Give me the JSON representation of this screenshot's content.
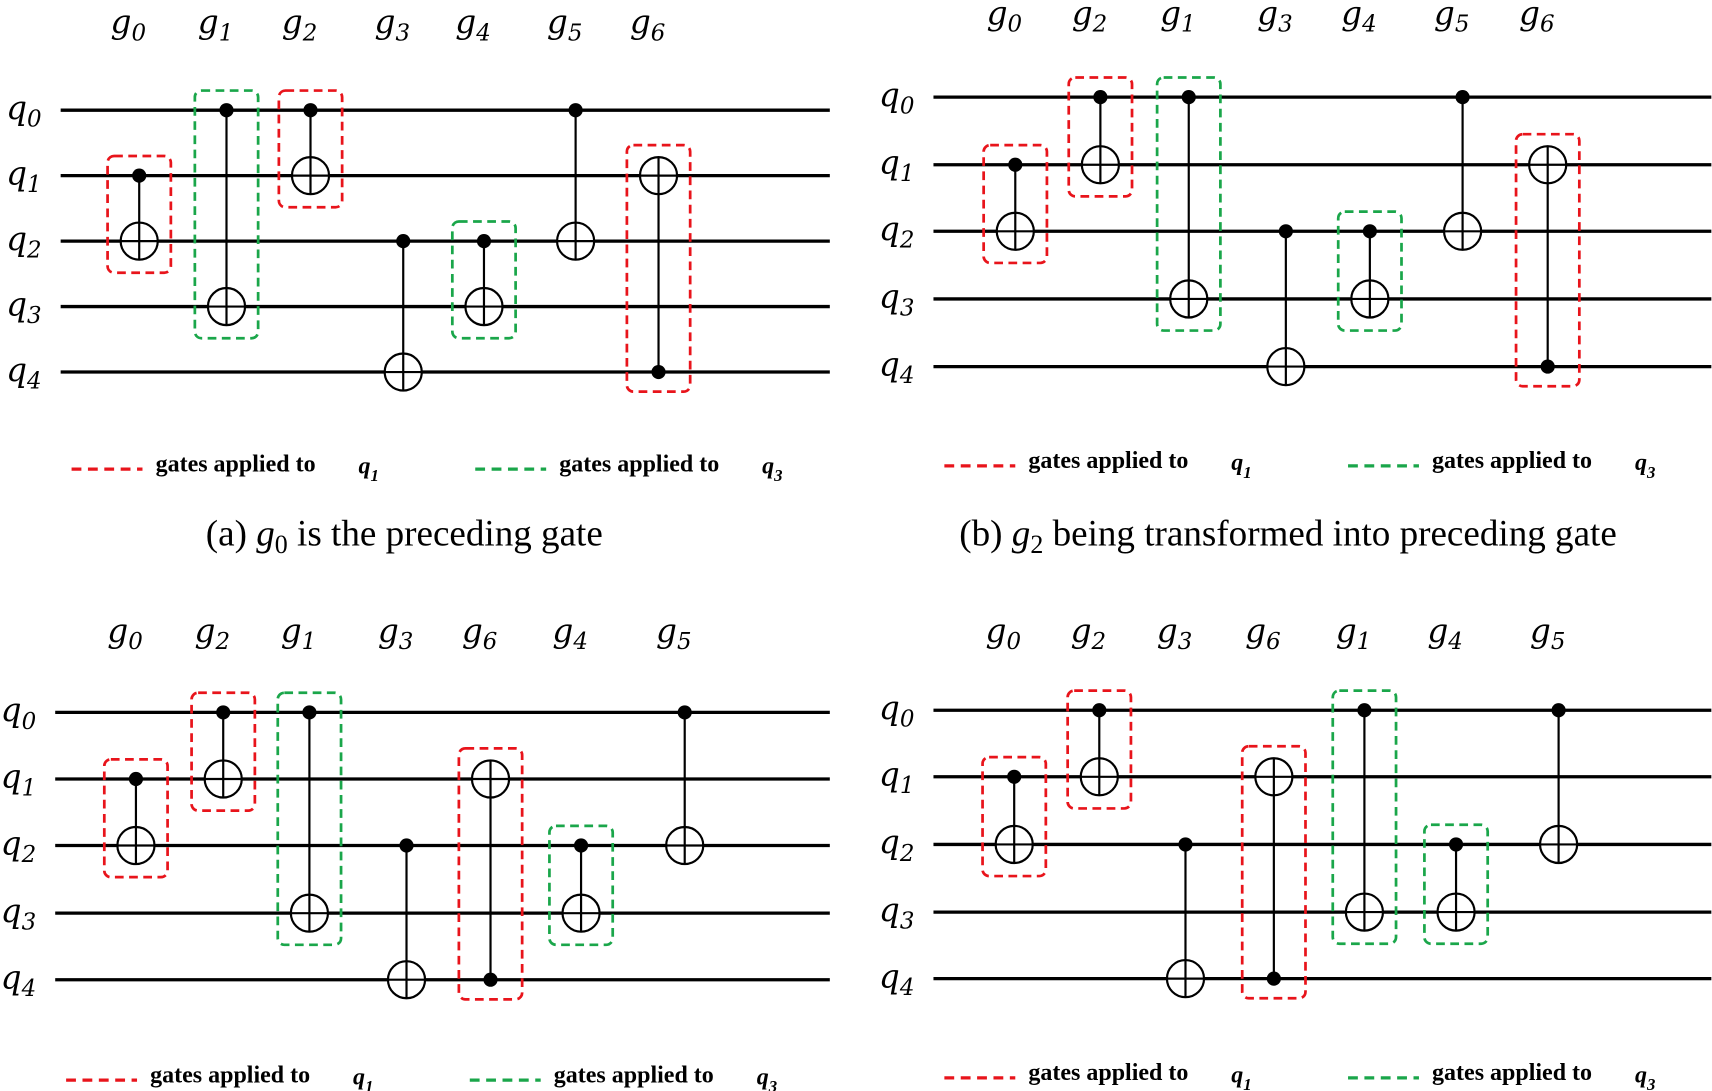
{
  "colors": {
    "q1_group": "#e8141b",
    "q3_group": "#1aa64a",
    "wire": "#000000"
  },
  "qubits": [
    "q0",
    "q1",
    "q2",
    "q3",
    "q4"
  ],
  "legend": {
    "q1": {
      "text": "gates applied to",
      "qubit": "q1",
      "color": "#e8141b"
    },
    "q3": {
      "text": "gates applied to",
      "qubit": "q3",
      "color": "#1aa64a"
    }
  },
  "gates": {
    "g0": {
      "control": 1,
      "target": 2,
      "group": "q1"
    },
    "g1": {
      "control": 0,
      "target": 3,
      "group": "q3"
    },
    "g2": {
      "control": 0,
      "target": 1,
      "group": "q1"
    },
    "g3": {
      "control": 2,
      "target": 4,
      "group": ""
    },
    "g4": {
      "control": 2,
      "target": 3,
      "group": "q3"
    },
    "g5": {
      "control": 0,
      "target": 2,
      "group": ""
    },
    "g6": {
      "control": 4,
      "target": 1,
      "group": "q1"
    }
  },
  "panels": [
    {
      "id": "a",
      "order": [
        "g0",
        "g1",
        "g2",
        "g3",
        "g4",
        "g5",
        "g6"
      ],
      "caption": {
        "prefix": "(a)",
        "gate": "g0",
        "text": "is the preceding gate"
      }
    },
    {
      "id": "b",
      "order": [
        "g0",
        "g2",
        "g1",
        "g3",
        "g4",
        "g5",
        "g6"
      ],
      "caption": {
        "prefix": "(b)",
        "gate": "g2",
        "text": "being transformed into preceding gate"
      }
    },
    {
      "id": "c",
      "order": [
        "g0",
        "g2",
        "g1",
        "g3",
        "g6",
        "g4",
        "g5"
      ]
    },
    {
      "id": "d",
      "order": [
        "g0",
        "g2",
        "g3",
        "g6",
        "g1",
        "g4",
        "g5"
      ]
    }
  ]
}
